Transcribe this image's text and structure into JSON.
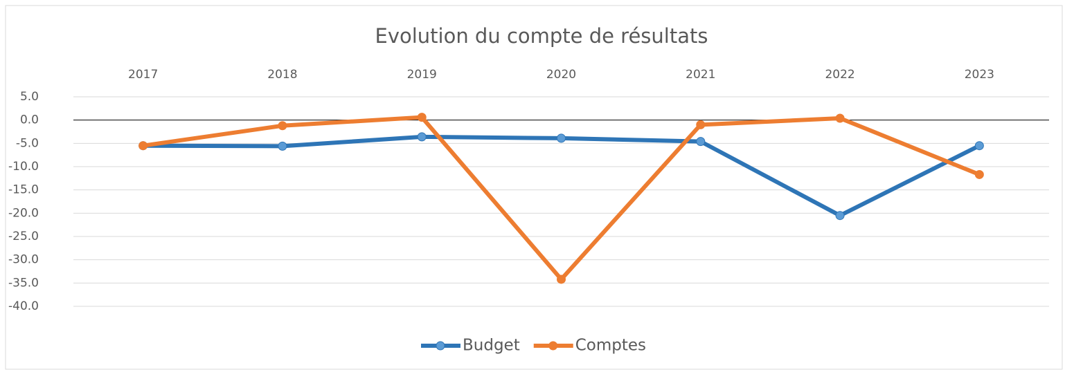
{
  "chart_data": {
    "type": "line",
    "title": "Evolution du compte de résultats",
    "categories": [
      "2017",
      "2018",
      "2019",
      "2020",
      "2021",
      "2022",
      "2023"
    ],
    "series": [
      {
        "name": "Budget",
        "color": "#2e75b6",
        "values": [
          -5.5,
          -5.6,
          -3.6,
          -3.9,
          -4.6,
          -20.5,
          -5.5
        ]
      },
      {
        "name": "Comptes",
        "color": "#ed7d31",
        "values": [
          -5.5,
          -1.2,
          0.6,
          -34.2,
          -1.0,
          0.4,
          -11.7
        ]
      }
    ],
    "ylim": [
      -40,
      5
    ],
    "yticks": [
      {
        "value": 5,
        "label": "5.0"
      },
      {
        "value": 0,
        "label": "0.0"
      },
      {
        "value": -5,
        "label": "-5.0"
      },
      {
        "value": -10,
        "label": "-10.0"
      },
      {
        "value": -15,
        "label": "-15.0"
      },
      {
        "value": -20,
        "label": "-20.0"
      },
      {
        "value": -25,
        "label": "-25.0"
      },
      {
        "value": -30,
        "label": "-30.0"
      },
      {
        "value": -35,
        "label": "-35.0"
      },
      {
        "value": -40,
        "label": "-40.0"
      }
    ],
    "grid": true,
    "legend": "bottom"
  }
}
